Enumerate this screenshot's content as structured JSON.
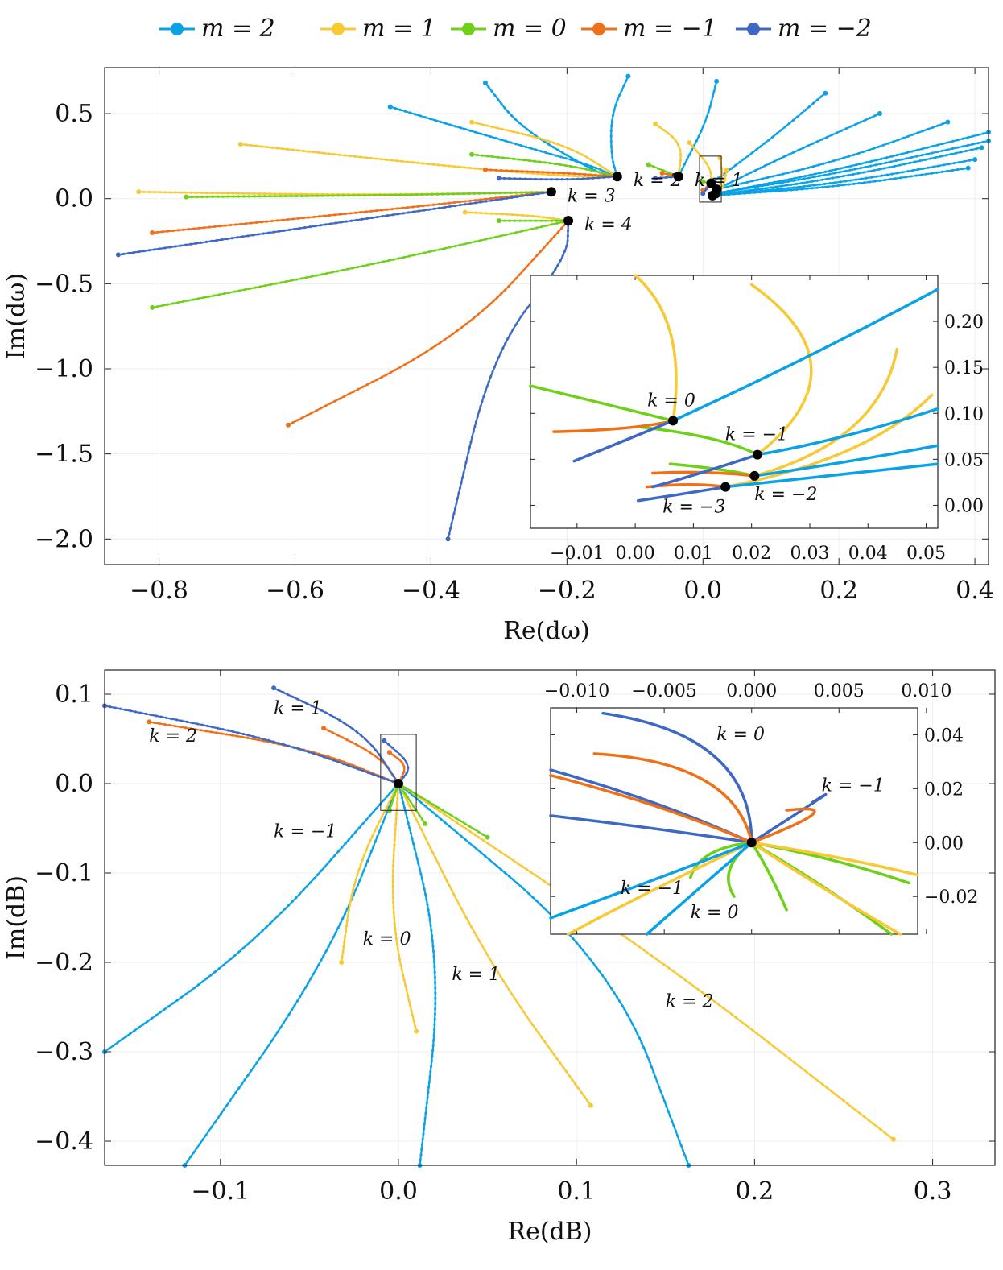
{
  "colors": {
    "m2": "#0aa2e6",
    "m1": "#f7c934",
    "m0": "#6fd019",
    "mneg1": "#f07018",
    "mneg2": "#3d68c4"
  },
  "legend": [
    {
      "key": "m2",
      "label": "m = 2"
    },
    {
      "key": "m1",
      "label": "m = 1"
    },
    {
      "key": "m0",
      "label": "m = 0"
    },
    {
      "key": "mneg1",
      "label": "m = −1"
    },
    {
      "key": "mneg2",
      "label": "m = −2"
    }
  ],
  "chart_data": [
    {
      "type": "line",
      "title": "",
      "xlabel": "Re(dω)",
      "ylabel": "Im(dω)",
      "xlim": [
        -0.88,
        0.42
      ],
      "ylim": [
        -2.15,
        0.77
      ],
      "xticks": [
        -0.8,
        -0.6,
        -0.4,
        -0.2,
        0.0,
        0.2,
        0.4
      ],
      "xtick_labels": [
        "−0.8",
        "−0.6",
        "−0.4",
        "−0.2",
        "0.0",
        "0.2",
        "0.4"
      ],
      "yticks": [
        0.5,
        0.0,
        -0.5,
        -1.0,
        -1.5,
        -2.0
      ],
      "ytick_labels": [
        "0.5",
        "0.0",
        "−0.5",
        "−1.0",
        "−1.5",
        "−2.0"
      ],
      "endpoints": [
        {
          "label": "k = 4",
          "x": -0.198,
          "y": -0.13
        },
        {
          "label": "k = 3",
          "x": -0.223,
          "y": 0.04
        },
        {
          "label": "k = 2",
          "x": -0.126,
          "y": 0.13
        },
        {
          "label": "k = 1",
          "x": -0.036,
          "y": 0.13
        },
        {
          "label": "",
          "x": 0.012,
          "y": 0.09
        },
        {
          "label": "",
          "x": 0.02,
          "y": 0.055
        },
        {
          "label": "",
          "x": 0.019,
          "y": 0.03
        },
        {
          "label": "",
          "x": 0.014,
          "y": 0.018
        }
      ],
      "series": [
        {
          "name": "m = 2",
          "key": "m2",
          "curves": [
            [
              [
                -0.46,
                0.54
              ],
              [
                -0.36,
                0.42
              ],
              [
                -0.24,
                0.28
              ],
              [
                -0.16,
                0.19
              ],
              [
                -0.13,
                0.13
              ]
            ],
            [
              [
                -0.32,
                0.68
              ],
              [
                -0.27,
                0.42
              ],
              [
                -0.16,
                0.16
              ],
              [
                -0.13,
                0.13
              ]
            ],
            [
              [
                -0.11,
                0.72
              ],
              [
                -0.135,
                0.5
              ],
              [
                -0.135,
                0.25
              ],
              [
                -0.126,
                0.13
              ]
            ],
            [
              [
                0.02,
                0.69
              ],
              [
                0.005,
                0.45
              ],
              [
                -0.03,
                0.18
              ],
              [
                -0.036,
                0.13
              ]
            ],
            [
              [
                0.18,
                0.62
              ],
              [
                0.1,
                0.35
              ],
              [
                0.012,
                0.09
              ]
            ],
            [
              [
                0.26,
                0.5
              ],
              [
                0.12,
                0.25
              ],
              [
                0.02,
                0.055
              ]
            ],
            [
              [
                0.36,
                0.45
              ],
              [
                0.2,
                0.22
              ],
              [
                0.02,
                0.055
              ]
            ],
            [
              [
                0.42,
                0.39
              ],
              [
                0.2,
                0.17
              ],
              [
                0.019,
                0.03
              ]
            ],
            [
              [
                0.42,
                0.34
              ],
              [
                0.2,
                0.15
              ],
              [
                0.019,
                0.03
              ]
            ],
            [
              [
                0.41,
                0.3
              ],
              [
                0.2,
                0.12
              ],
              [
                0.014,
                0.018
              ]
            ],
            [
              [
                0.4,
                0.23
              ],
              [
                0.2,
                0.09
              ],
              [
                0.014,
                0.018
              ]
            ],
            [
              [
                0.39,
                0.18
              ],
              [
                0.2,
                0.07
              ],
              [
                0.014,
                0.018
              ]
            ]
          ]
        },
        {
          "name": "m = 1",
          "key": "m1",
          "curves": [
            [
              [
                -0.83,
                0.04
              ],
              [
                -0.5,
                0.02
              ],
              [
                -0.223,
                0.04
              ]
            ],
            [
              [
                -0.68,
                0.32
              ],
              [
                -0.4,
                0.2
              ],
              [
                -0.2,
                0.13
              ],
              [
                -0.126,
                0.13
              ]
            ],
            [
              [
                -0.34,
                0.45
              ],
              [
                -0.2,
                0.32
              ],
              [
                -0.126,
                0.13
              ]
            ],
            [
              [
                -0.07,
                0.44
              ],
              [
                -0.03,
                0.32
              ],
              [
                -0.036,
                0.13
              ]
            ],
            [
              [
                -0.02,
                0.33
              ],
              [
                0.012,
                0.18
              ],
              [
                0.012,
                0.09
              ]
            ],
            [
              [
                -0.35,
                -0.08
              ],
              [
                -0.25,
                -0.1
              ],
              [
                -0.198,
                -0.13
              ]
            ],
            [
              [
                0.025,
                0.24
              ],
              [
                0.03,
                0.12
              ],
              [
                0.02,
                0.055
              ]
            ],
            [
              [
                0.035,
                0.17
              ],
              [
                0.03,
                0.06
              ],
              [
                0.019,
                0.03
              ]
            ]
          ]
        },
        {
          "name": "m = 0",
          "key": "m0",
          "curves": [
            [
              [
                -0.81,
                -0.64
              ],
              [
                -0.5,
                -0.4
              ],
              [
                -0.198,
                -0.13
              ]
            ],
            [
              [
                -0.76,
                0.01
              ],
              [
                -0.45,
                0.02
              ],
              [
                -0.223,
                0.04
              ]
            ],
            [
              [
                -0.34,
                0.26
              ],
              [
                -0.2,
                0.2
              ],
              [
                -0.126,
                0.13
              ]
            ],
            [
              [
                -0.08,
                0.2
              ],
              [
                -0.036,
                0.13
              ]
            ],
            [
              [
                -0.3,
                -0.13
              ],
              [
                -0.198,
                -0.13
              ]
            ],
            [
              [
                0.0,
                0.1
              ],
              [
                0.012,
                0.09
              ]
            ]
          ]
        },
        {
          "name": "m = −1",
          "key": "mneg1",
          "curves": [
            [
              [
                -0.61,
                -1.33
              ],
              [
                -0.35,
                -0.8
              ],
              [
                -0.198,
                -0.13
              ]
            ],
            [
              [
                -0.81,
                -0.2
              ],
              [
                -0.45,
                -0.06
              ],
              [
                -0.223,
                0.04
              ]
            ],
            [
              [
                -0.32,
                0.17
              ],
              [
                -0.2,
                0.15
              ],
              [
                -0.126,
                0.13
              ]
            ],
            [
              [
                -0.06,
                0.15
              ],
              [
                -0.036,
                0.13
              ]
            ],
            [
              [
                0.0,
                0.05
              ],
              [
                0.012,
                0.09
              ]
            ]
          ]
        },
        {
          "name": "m = −2",
          "key": "mneg2",
          "curves": [
            [
              [
                -0.375,
                -2.0
              ],
              [
                -0.31,
                -0.9
              ],
              [
                -0.2,
                -0.35
              ],
              [
                -0.198,
                -0.13
              ]
            ],
            [
              [
                -0.86,
                -0.33
              ],
              [
                -0.5,
                -0.12
              ],
              [
                -0.223,
                0.04
              ]
            ],
            [
              [
                -0.3,
                0.12
              ],
              [
                -0.2,
                0.11
              ],
              [
                -0.126,
                0.13
              ]
            ],
            [
              [
                -0.07,
                0.12
              ],
              [
                -0.036,
                0.13
              ]
            ],
            [
              [
                0.0,
                0.03
              ],
              [
                0.012,
                0.09
              ]
            ]
          ]
        }
      ],
      "inset": {
        "xlim": [
          -0.018,
          0.052
        ],
        "ylim": [
          -0.025,
          0.25
        ],
        "xticks": [
          -0.01,
          0.0,
          0.01,
          0.02,
          0.03,
          0.04,
          0.05
        ],
        "xtick_labels": [
          "−0.01",
          "0.00",
          "0.01",
          "0.02",
          "0.03",
          "0.04",
          "0.05"
        ],
        "yticks": [
          0.2,
          0.15,
          0.1,
          0.05,
          0.0
        ],
        "ytick_labels": [
          "0.20",
          "0.15",
          "0.10",
          "0.05",
          "0.00"
        ],
        "endpoints": [
          {
            "label": "k = 0",
            "x": 0.0065,
            "y": 0.092
          },
          {
            "label": "k = −1",
            "x": 0.021,
            "y": 0.055
          },
          {
            "label": "k = −2",
            "x": 0.0205,
            "y": 0.032
          },
          {
            "label": "k = −3",
            "x": 0.0155,
            "y": 0.02
          }
        ]
      }
    },
    {
      "type": "line",
      "title": "",
      "xlabel": "Re(dB)",
      "ylabel": "Im(dB)",
      "xlim": [
        -0.165,
        0.335
      ],
      "ylim": [
        -0.427,
        0.127
      ],
      "xticks": [
        -0.1,
        0.0,
        0.1,
        0.2,
        0.3
      ],
      "xtick_labels": [
        "−0.1",
        "0.0",
        "0.1",
        "0.2",
        "0.3"
      ],
      "yticks": [
        0.1,
        0.0,
        -0.1,
        -0.2,
        -0.3,
        -0.4
      ],
      "ytick_labels": [
        "0.1",
        "0.0",
        "−0.1",
        "−0.2",
        "−0.3",
        "−0.4"
      ],
      "series": [
        {
          "name": "m = 2",
          "key": "m2",
          "curves": [
            [
              [
                -0.165,
                -0.3
              ],
              [
                -0.08,
                -0.18
              ],
              [
                0.0,
                0.0
              ]
            ],
            [
              [
                -0.12,
                -0.427
              ],
              [
                -0.04,
                -0.2
              ],
              [
                0.0,
                0.0
              ]
            ],
            [
              [
                0.012,
                -0.427
              ],
              [
                0.025,
                -0.2
              ],
              [
                0.0,
                0.0
              ]
            ],
            [
              [
                0.163,
                -0.427
              ],
              [
                0.12,
                -0.2
              ],
              [
                0.0,
                0.0
              ]
            ]
          ]
        },
        {
          "name": "m = 1",
          "key": "m1",
          "curves": [
            [
              [
                -0.032,
                -0.2
              ],
              [
                -0.025,
                -0.1
              ],
              [
                0.0,
                0.0
              ]
            ],
            [
              [
                0.01,
                -0.277
              ],
              [
                -0.005,
                -0.15
              ],
              [
                0.0,
                0.0
              ]
            ],
            [
              [
                0.108,
                -0.36
              ],
              [
                0.05,
                -0.2
              ],
              [
                0.0,
                0.0
              ]
            ],
            [
              [
                0.278,
                -0.398
              ],
              [
                0.15,
                -0.2
              ],
              [
                0.0,
                0.0
              ]
            ]
          ]
        },
        {
          "name": "m = 0",
          "key": "m0",
          "curves": [
            [
              [
                0.015,
                -0.045
              ],
              [
                0.0,
                0.0
              ]
            ],
            [
              [
                0.05,
                -0.06
              ],
              [
                0.0,
                0.0
              ]
            ],
            [
              [
                -0.005,
                -0.03
              ],
              [
                0.0,
                0.0
              ]
            ]
          ]
        },
        {
          "name": "m = −1",
          "key": "mneg1",
          "curves": [
            [
              [
                -0.14,
                0.069
              ],
              [
                -0.05,
                0.04
              ],
              [
                0.0,
                0.0
              ]
            ],
            [
              [
                -0.042,
                0.062
              ],
              [
                -0.01,
                0.03
              ],
              [
                0.0,
                0.0
              ]
            ],
            [
              [
                -0.005,
                0.035
              ],
              [
                0.005,
                0.02
              ],
              [
                0.0,
                0.0
              ]
            ]
          ]
        },
        {
          "name": "m = −2",
          "key": "mneg2",
          "curves": [
            [
              [
                -0.165,
                0.087
              ],
              [
                -0.07,
                0.05
              ],
              [
                0.0,
                0.0
              ]
            ],
            [
              [
                -0.07,
                0.107
              ],
              [
                -0.02,
                0.06
              ],
              [
                0.0,
                0.0
              ]
            ],
            [
              [
                -0.008,
                0.048
              ],
              [
                0.008,
                0.02
              ],
              [
                0.0,
                0.0
              ]
            ]
          ]
        }
      ],
      "annotations": [
        {
          "label": "k = 1",
          "x": -0.07,
          "y": 0.078
        },
        {
          "label": "k = 2",
          "x": -0.14,
          "y": 0.047
        },
        {
          "label": "k = −1",
          "x": -0.07,
          "y": -0.06
        },
        {
          "label": "k = 0",
          "x": -0.02,
          "y": -0.18
        },
        {
          "label": "k = 1",
          "x": 0.03,
          "y": -0.22
        },
        {
          "label": "k = 2",
          "x": 0.15,
          "y": -0.25
        }
      ],
      "inset": {
        "xlim": [
          -0.0115,
          0.0095
        ],
        "ylim": [
          -0.034,
          0.05
        ],
        "xticks": [
          -0.01,
          -0.005,
          0.0,
          0.005,
          0.01
        ],
        "xtick_labels": [
          "−0.010",
          "−0.005",
          "0.000",
          "0.005",
          "0.010"
        ],
        "yticks": [
          0.04,
          0.02,
          0.0,
          -0.02
        ],
        "ytick_labels": [
          "0.04",
          "0.02",
          "0.00",
          "−0.02"
        ],
        "annotations": [
          {
            "label": "k = 0",
            "x": -0.002,
            "y": 0.038
          },
          {
            "label": "k = −1",
            "x": 0.004,
            "y": 0.019
          },
          {
            "label": "k = −1",
            "x": -0.0075,
            "y": -0.019
          },
          {
            "label": "k = 0",
            "x": -0.0035,
            "y": -0.028
          }
        ]
      }
    }
  ]
}
